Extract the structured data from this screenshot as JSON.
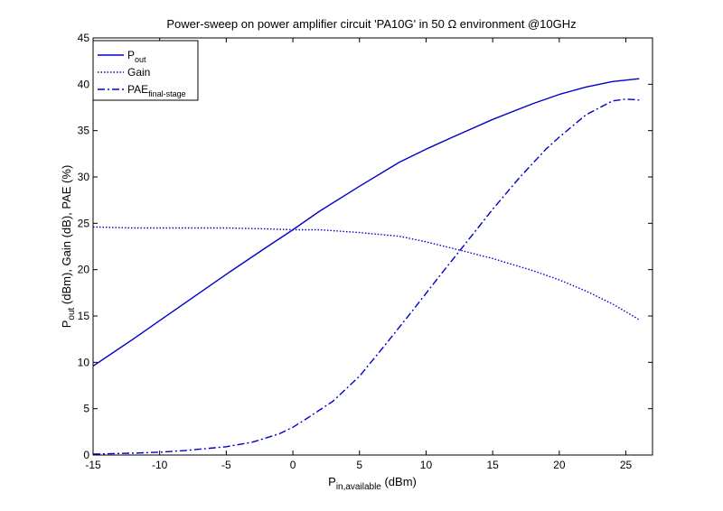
{
  "chart_data": {
    "type": "line",
    "title": "Power-sweep on power amplifier circuit 'PA10G' in 50 Ω environment @10GHz",
    "xlabel": {
      "main": "P",
      "sub": "in,available",
      "rest": " (dBm)"
    },
    "ylabel": {
      "main": "P",
      "sub": "out",
      "rest": " (dBm), Gain (dB), PAE (%)"
    },
    "xlim": [
      -15,
      27
    ],
    "ylim": [
      0,
      45
    ],
    "xticks": [
      -15,
      -10,
      -5,
      0,
      5,
      10,
      15,
      20,
      25
    ],
    "yticks": [
      0,
      5,
      10,
      15,
      20,
      25,
      30,
      35,
      40,
      45
    ],
    "grid": false,
    "legend_position": "top-left",
    "series": [
      {
        "name": "P",
        "name_sub": "out",
        "style": "solid",
        "color": "#0000cc",
        "x": [
          -15,
          -12,
          -10,
          -8,
          -5,
          -2,
          0,
          2,
          5,
          8,
          10,
          12,
          15,
          18,
          20,
          22,
          24,
          26
        ],
        "y": [
          9.6,
          12.5,
          14.5,
          16.5,
          19.5,
          22.4,
          24.3,
          26.3,
          29.0,
          31.6,
          33.0,
          34.3,
          36.2,
          37.9,
          38.9,
          39.7,
          40.3,
          40.6
        ]
      },
      {
        "name": "Gain",
        "style": "dotted",
        "color": "#0000cc",
        "x": [
          -15,
          -12,
          -10,
          -8,
          -5,
          -2,
          0,
          2,
          5,
          8,
          10,
          12,
          15,
          18,
          20,
          22,
          24,
          26
        ],
        "y": [
          24.6,
          24.5,
          24.5,
          24.5,
          24.5,
          24.4,
          24.3,
          24.3,
          24.0,
          23.6,
          23.0,
          22.3,
          21.2,
          19.9,
          18.9,
          17.7,
          16.3,
          14.6
        ]
      },
      {
        "name": "PAE",
        "name_sub": "final-stage",
        "style": "dashdot",
        "color": "#0000cc",
        "x": [
          -15,
          -12,
          -10,
          -8,
          -5,
          -3,
          -1,
          0,
          1,
          3,
          5,
          7,
          9,
          11,
          13,
          15,
          17,
          19,
          20,
          22,
          24,
          25,
          26
        ],
        "y": [
          0.1,
          0.2,
          0.3,
          0.5,
          0.9,
          1.4,
          2.3,
          3.0,
          3.9,
          5.8,
          8.5,
          12.0,
          15.6,
          19.3,
          22.9,
          26.5,
          29.9,
          33.0,
          34.3,
          36.7,
          38.2,
          38.4,
          38.3
        ]
      }
    ]
  }
}
